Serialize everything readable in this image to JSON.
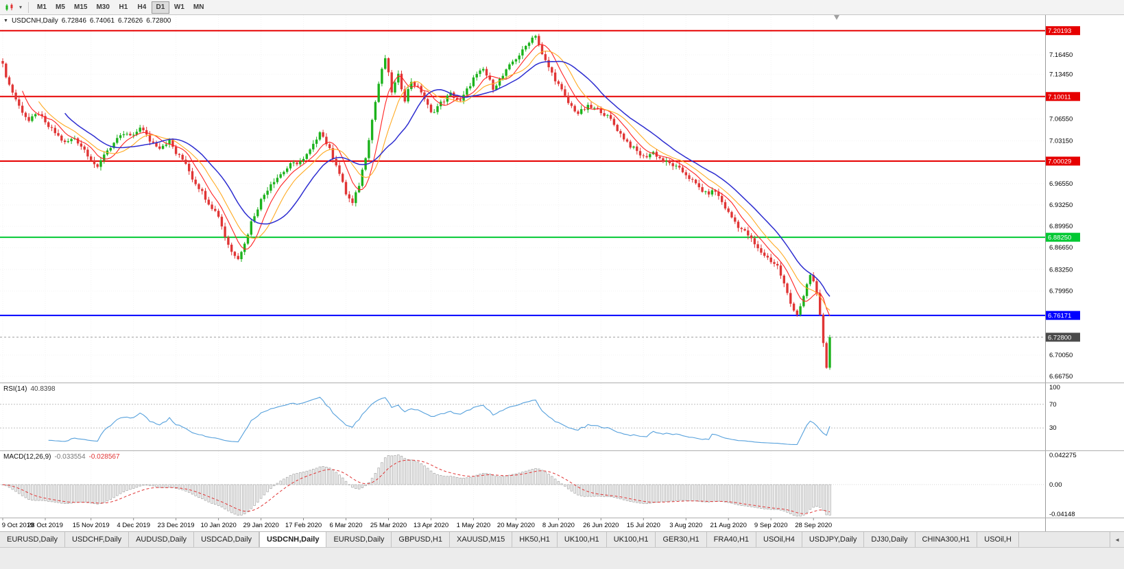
{
  "icons": {
    "collapse": "▼",
    "chart_dropdown": "▾",
    "tab_scroll_left": "◄"
  },
  "toolbar": {
    "timeframes": [
      "M1",
      "M5",
      "M15",
      "M30",
      "H1",
      "H4",
      "D1",
      "W1",
      "MN"
    ],
    "active_timeframe": "D1"
  },
  "chart_header": {
    "symbol": "USDCNH,Daily",
    "open": "6.72846",
    "high": "6.74061",
    "low": "6.72626",
    "close": "6.72800"
  },
  "tabs": {
    "active_index": 4,
    "items": [
      "EURUSD,Daily",
      "USDCHF,Daily",
      "AUDUSD,Daily",
      "USDCAD,Daily",
      "USDCNH,Daily",
      "EURUSD,Daily",
      "GBPUSD,H1",
      "XAUUSD,M15",
      "HK50,H1",
      "UK100,H1",
      "UK100,H1",
      "GER30,H1",
      "FRA40,H1",
      "USOil,H4",
      "USDJPY,Daily",
      "DJ30,Daily",
      "CHINA300,H1",
      "USOil,H"
    ]
  },
  "chart_data": {
    "type": "candlestick",
    "symbol": "USDCNH",
    "timeframe": "Daily",
    "days_total": 254,
    "x_labels": [
      "9 Oct 2019",
      "28 Oct 2019",
      "15 Nov 2019",
      "4 Dec 2019",
      "23 Dec 2019",
      "10 Jan 2020",
      "29 Jan 2020",
      "17 Feb 2020",
      "6 Mar 2020",
      "25 Mar 2020",
      "13 Apr 2020",
      "1 May 2020",
      "20 May 2020",
      "8 Jun 2020",
      "26 Jun 2020",
      "15 Jul 2020",
      "3 Aug 2020",
      "21 Aug 2020",
      "9 Sep 2020",
      "28 Sep 2020"
    ],
    "x_label_days": [
      0,
      13,
      27,
      40,
      53,
      66,
      79,
      92,
      105,
      118,
      131,
      144,
      157,
      170,
      183,
      196,
      209,
      222,
      235,
      248
    ],
    "price_axis": {
      "min": 6.658,
      "max": 7.226,
      "ticks": [
        {
          "label": "7.16450",
          "value": 7.1645
        },
        {
          "label": "7.13450",
          "value": 7.1345
        },
        {
          "label": "7.06550",
          "value": 7.0655
        },
        {
          "label": "7.03150",
          "value": 7.0315
        },
        {
          "label": "6.96550",
          "value": 6.9655
        },
        {
          "label": "6.93250",
          "value": 6.9325
        },
        {
          "label": "6.89950",
          "value": 6.8995
        },
        {
          "label": "6.86650",
          "value": 6.8665
        },
        {
          "label": "6.83250",
          "value": 6.8325
        },
        {
          "label": "6.79950",
          "value": 6.7995
        },
        {
          "label": "6.70050",
          "value": 6.7005
        },
        {
          "label": "6.66750",
          "value": 6.6675
        }
      ]
    },
    "levels": [
      {
        "label": "7.20193",
        "price": 7.20193,
        "color": "#e60000"
      },
      {
        "label": "7.10011",
        "price": 7.10011,
        "color": "#e60000"
      },
      {
        "label": "7.00029",
        "price": 7.00029,
        "color": "#e60000"
      },
      {
        "label": "6.88250",
        "price": 6.8825,
        "color": "#00c832"
      },
      {
        "label": "6.76171",
        "price": 6.76171,
        "color": "#0000ff"
      }
    ],
    "current_price": {
      "label": "6.72800",
      "value": 6.728,
      "badge_color": "#4a4a4a"
    },
    "up_color": "#1cb21c",
    "down_color": "#e03535",
    "noise_amp": 0.0035,
    "wick_amp": 0.006,
    "anchors": [
      [
        0,
        7.148
      ],
      [
        2,
        7.118
      ],
      [
        5,
        7.085
      ],
      [
        8,
        7.062
      ],
      [
        11,
        7.075
      ],
      [
        13,
        7.058
      ],
      [
        16,
        7.044
      ],
      [
        19,
        7.028
      ],
      [
        22,
        7.036
      ],
      [
        25,
        7.018
      ],
      [
        27,
        7.004
      ],
      [
        29,
        6.988
      ],
      [
        31,
        7.012
      ],
      [
        34,
        7.028
      ],
      [
        37,
        7.042
      ],
      [
        40,
        7.038
      ],
      [
        42,
        7.054
      ],
      [
        45,
        7.032
      ],
      [
        48,
        7.022
      ],
      [
        51,
        7.032
      ],
      [
        53,
        7.012
      ],
      [
        56,
        6.998
      ],
      [
        58,
        6.974
      ],
      [
        60,
        6.96
      ],
      [
        63,
        6.936
      ],
      [
        66,
        6.916
      ],
      [
        68,
        6.884
      ],
      [
        70,
        6.86
      ],
      [
        72,
        6.852
      ],
      [
        74,
        6.872
      ],
      [
        76,
        6.906
      ],
      [
        79,
        6.94
      ],
      [
        82,
        6.966
      ],
      [
        85,
        6.98
      ],
      [
        88,
        6.994
      ],
      [
        92,
        7.002
      ],
      [
        95,
        7.024
      ],
      [
        97,
        7.048
      ],
      [
        99,
        7.028
      ],
      [
        102,
        6.996
      ],
      [
        105,
        6.95
      ],
      [
        107,
        6.934
      ],
      [
        109,
        6.964
      ],
      [
        111,
        7.008
      ],
      [
        113,
        7.064
      ],
      [
        115,
        7.12
      ],
      [
        117,
        7.16
      ],
      [
        119,
        7.108
      ],
      [
        121,
        7.132
      ],
      [
        123,
        7.096
      ],
      [
        125,
        7.124
      ],
      [
        128,
        7.108
      ],
      [
        131,
        7.074
      ],
      [
        134,
        7.09
      ],
      [
        137,
        7.104
      ],
      [
        140,
        7.092
      ],
      [
        144,
        7.128
      ],
      [
        147,
        7.142
      ],
      [
        150,
        7.114
      ],
      [
        153,
        7.132
      ],
      [
        156,
        7.154
      ],
      [
        159,
        7.17
      ],
      [
        161,
        7.186
      ],
      [
        163,
        7.196
      ],
      [
        165,
        7.164
      ],
      [
        168,
        7.136
      ],
      [
        170,
        7.118
      ],
      [
        173,
        7.09
      ],
      [
        176,
        7.074
      ],
      [
        179,
        7.084
      ],
      [
        183,
        7.078
      ],
      [
        186,
        7.064
      ],
      [
        189,
        7.042
      ],
      [
        192,
        7.024
      ],
      [
        196,
        7.006
      ],
      [
        199,
        7.014
      ],
      [
        202,
        7.0
      ],
      [
        205,
        6.994
      ],
      [
        209,
        6.98
      ],
      [
        212,
        6.964
      ],
      [
        215,
        6.95
      ],
      [
        218,
        6.954
      ],
      [
        222,
        6.92
      ],
      [
        225,
        6.9
      ],
      [
        228,
        6.886
      ],
      [
        231,
        6.864
      ],
      [
        235,
        6.846
      ],
      [
        237,
        6.838
      ],
      [
        239,
        6.81
      ],
      [
        241,
        6.78
      ],
      [
        243,
        6.764
      ],
      [
        245,
        6.79
      ],
      [
        247,
        6.824
      ],
      [
        248,
        6.814
      ],
      [
        249,
        6.794
      ],
      [
        250,
        6.764
      ],
      [
        251,
        6.718
      ],
      [
        252,
        6.684
      ],
      [
        253,
        6.728
      ]
    ],
    "ma": [
      {
        "period": 7,
        "color": "#ff2222",
        "width": 1.1
      },
      {
        "period": 12,
        "color": "#ffaa22",
        "width": 1.1
      },
      {
        "period": 20,
        "color": "#2c2cd0",
        "width": 1.5
      }
    ],
    "rsi": {
      "label": "RSI(14)",
      "value_text": "40.8398",
      "period": 14,
      "color": "#55a0dc",
      "levels": [
        70,
        30
      ],
      "axis_labels": [
        {
          "label": "100",
          "value": 100
        },
        {
          "label": "70",
          "value": 70
        },
        {
          "label": "30",
          "value": 30
        }
      ]
    },
    "macd": {
      "label": "MACD(12,26,9)",
      "value_main": "-0.033554",
      "value_signal": "-0.028567",
      "fast": 12,
      "slow": 26,
      "signal": 9,
      "signal_color": "#e03535",
      "hist_fill": "#f2f2f2",
      "hist_stroke": "#a6a6a6",
      "range": [
        -0.0415,
        0.0423
      ],
      "axis_labels": [
        {
          "label": "0.042275",
          "value": 0.042275
        },
        {
          "label": "0.00",
          "value": 0
        },
        {
          "label": "-0.04148",
          "value": -0.04148
        }
      ]
    }
  }
}
